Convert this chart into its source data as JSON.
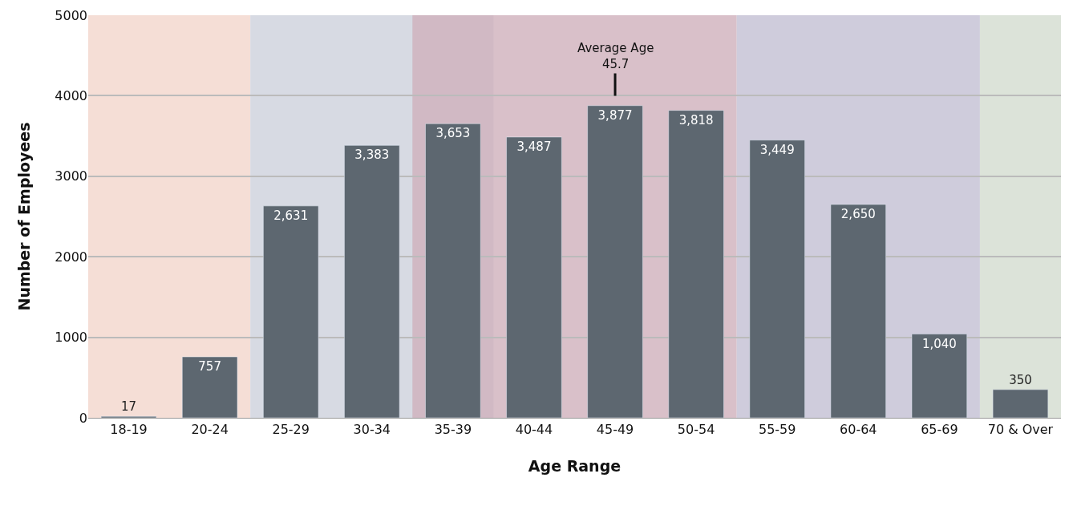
{
  "chart_data": {
    "type": "bar",
    "xlabel": "Age Range",
    "ylabel": "Number of Employees",
    "categories": [
      "18-19",
      "20-24",
      "25-29",
      "30-34",
      "35-39",
      "40-44",
      "45-49",
      "50-54",
      "55-59",
      "60-64",
      "65-69",
      "70 & Over"
    ],
    "values": [
      17,
      757,
      2631,
      3383,
      3653,
      3487,
      3877,
      3818,
      3449,
      2650,
      1040,
      350
    ],
    "value_labels": [
      "17",
      "757",
      "2,631",
      "3,383",
      "3,653",
      "3,487",
      "3,877",
      "3,818",
      "3,449",
      "2,650",
      "1,040",
      "350"
    ],
    "color": "#5d6770",
    "ylim": [
      0,
      5000
    ],
    "yticks": [
      0,
      1000,
      2000,
      3000,
      4000,
      5000
    ],
    "grid": "y",
    "legend": false,
    "bands": [
      {
        "axis": "x",
        "from": "18-19",
        "to": "20-24",
        "color": "#f2d6cc"
      },
      {
        "axis": "x",
        "from": "25-29",
        "to": "35-39",
        "color": "#cdd1dc"
      },
      {
        "axis": "x",
        "from": "35-39",
        "to": "50-54",
        "color": "#cfb0bb"
      },
      {
        "axis": "x",
        "from": "55-59",
        "to": "65-69",
        "color": "#c3bfd3"
      },
      {
        "axis": "x",
        "from": "70 & Over",
        "to": "70 & Over",
        "color": "#d3dccf"
      }
    ],
    "annotations": [
      "Average Age\n45.7"
    ]
  }
}
